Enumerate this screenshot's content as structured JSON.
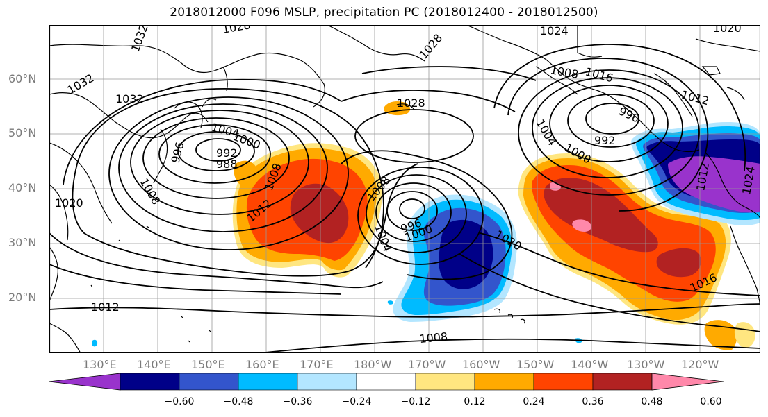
{
  "title": "2018012000 F096 MSLP, precipitation PC (2018012400 - 2018012500)",
  "lat_labels": [
    "60°N",
    "50°N",
    "40°N",
    "30°N",
    "20°N"
  ],
  "lon_labels": [
    "130°E",
    "140°E",
    "150°E",
    "160°E",
    "170°E",
    "180°W",
    "170°W",
    "160°W",
    "150°W",
    "140°W",
    "130°W",
    "120°W"
  ],
  "isobar_labels": [
    "1028",
    "1032",
    "1032",
    "1032",
    "1020",
    "1028",
    "1028",
    "1024",
    "1020",
    "1008",
    "1004",
    "996",
    "1000",
    "988",
    "992",
    "1012",
    "1008",
    "1008",
    "996",
    "1000",
    "1004",
    "1020",
    "1000",
    "1004",
    "992",
    "996",
    "1008",
    "1016",
    "1012",
    "1016",
    "1012",
    "1008",
    "1012",
    "1024"
  ],
  "colorbar": {
    "colors": [
      "#9933cc",
      "#000088",
      "#3355cc",
      "#00bbff",
      "#b3e6ff",
      "#ffffff",
      "#ffe680",
      "#ffaa00",
      "#ff4400",
      "#b22222",
      "#ff88aa"
    ],
    "ticks": [
      "−0.60",
      "−0.48",
      "−0.36",
      "−0.24",
      "−0.12",
      "0.12",
      "0.24",
      "0.36",
      "0.48",
      "0.60"
    ]
  },
  "colors": {
    "land_outline": "#000000",
    "isobar": "#000000",
    "grid": "#999999"
  }
}
